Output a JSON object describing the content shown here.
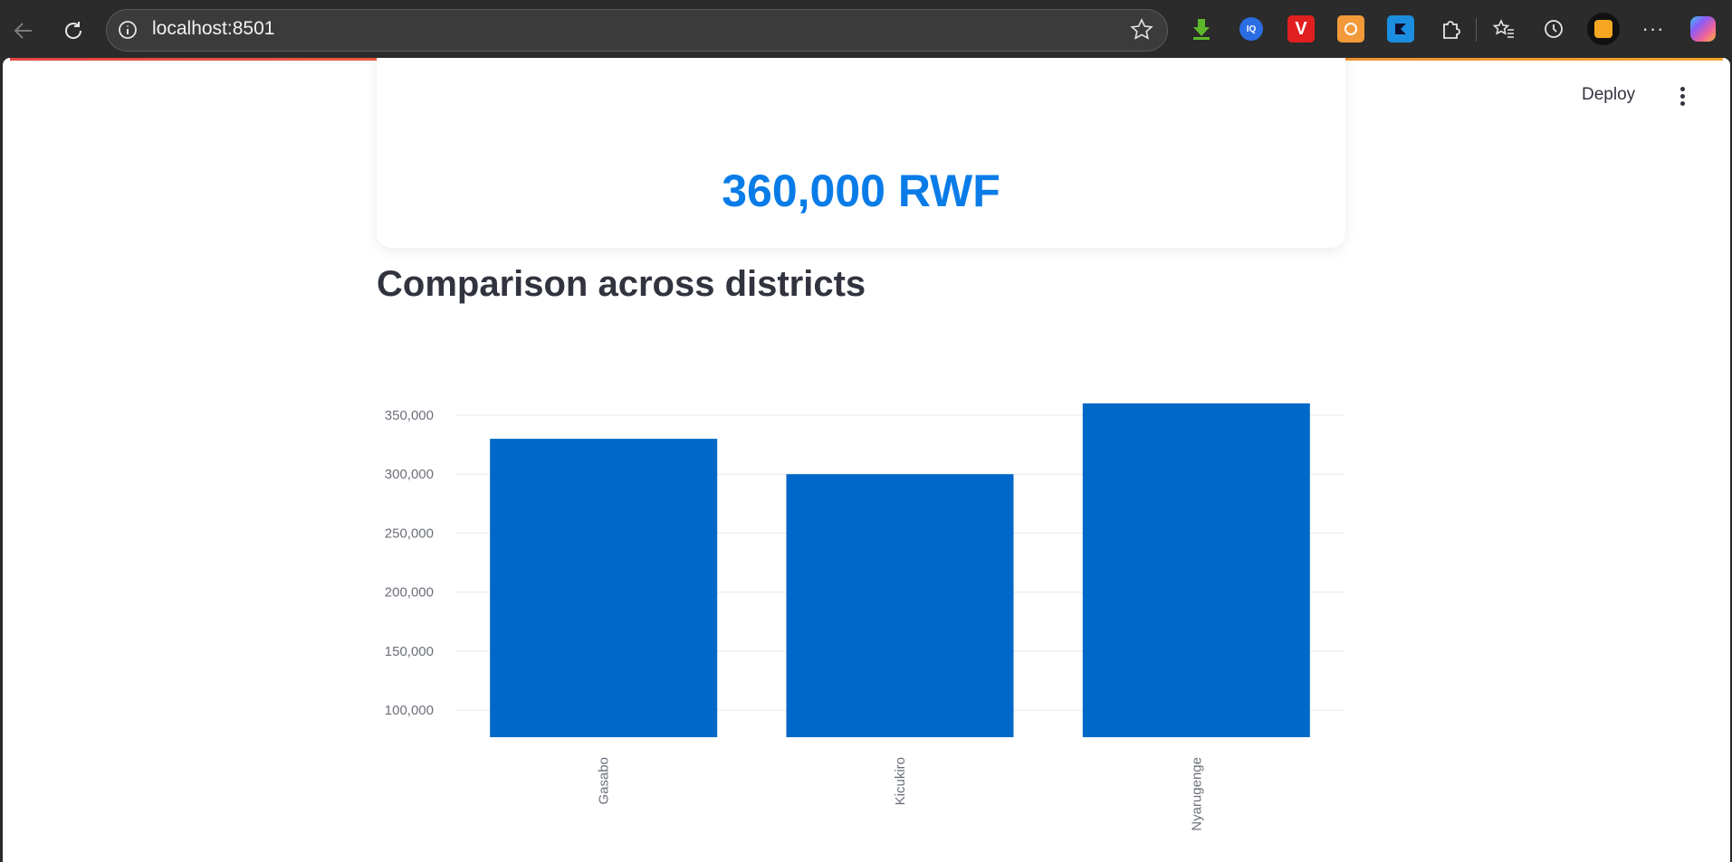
{
  "browser": {
    "url": "localhost:8501",
    "icons": [
      "back-arrow-icon",
      "reload-icon",
      "info-icon",
      "star-icon",
      "download-extension-icon",
      "iq-extension-icon",
      "v-extension-icon",
      "orange-extension-icon",
      "blue-extension-icon",
      "puzzle-icon",
      "favorites-icon",
      "history-icon",
      "profile-avatar",
      "more-icon",
      "copilot-icon"
    ]
  },
  "header": {
    "deploy_label": "Deploy"
  },
  "metric": {
    "value": "360,000 RWF"
  },
  "section": {
    "title": "Comparison across districts"
  },
  "colors": {
    "bar": "#0068c9",
    "metric": "#0a7ce8"
  },
  "chart_data": {
    "type": "bar",
    "categories": [
      "Gasabo",
      "Kicukiro",
      "Nyarugenge"
    ],
    "values": [
      330000,
      300000,
      360000
    ],
    "ylim": [
      77000,
      360000
    ],
    "yticks": [
      100000,
      150000,
      200000,
      250000,
      300000,
      350000
    ],
    "ytick_labels": [
      "100,000",
      "150,000",
      "200,000",
      "250,000",
      "300,000",
      "350,000"
    ],
    "grid": true
  }
}
